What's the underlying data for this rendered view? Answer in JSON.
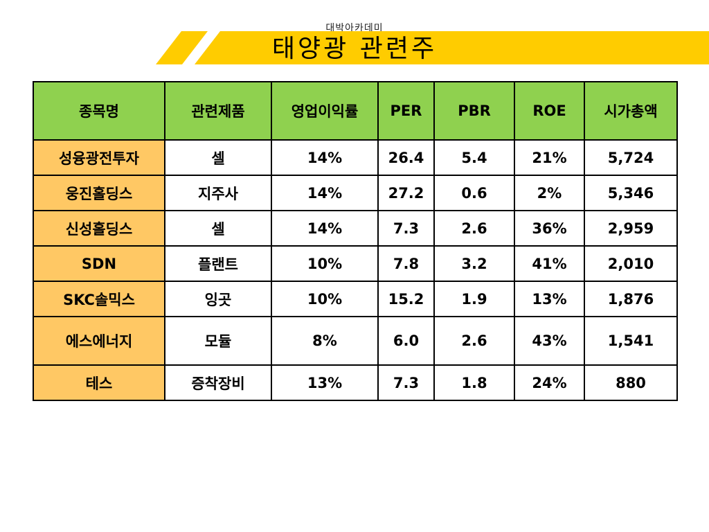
{
  "header": {
    "organization": "대박아카데미",
    "title": "태양광 관련주",
    "colors": {
      "banner": "#ffcc00",
      "header_row": "#8fd14f",
      "name_column": "#ffc864"
    }
  },
  "table": {
    "columns": [
      "종목명",
      "관련제품",
      "영업이익률",
      "PER",
      "PBR",
      "ROE",
      "시가총액"
    ],
    "rows": [
      [
        "성융광전투자",
        "셀",
        "14%",
        "26.4",
        "5.4",
        "21%",
        "5,724"
      ],
      [
        "웅진홀딩스",
        "지주사",
        "14%",
        "27.2",
        "0.6",
        "2%",
        "5,346"
      ],
      [
        "신성홀딩스",
        "셀",
        "14%",
        "7.3",
        "2.6",
        "36%",
        "2,959"
      ],
      [
        "SDN",
        "플랜트",
        "10%",
        "7.8",
        "3.2",
        "41%",
        "2,010"
      ],
      [
        "SKC솔믹스",
        "잉곳",
        "10%",
        "15.2",
        "1.9",
        "13%",
        "1,876"
      ],
      [
        "에스에너지",
        "모듈",
        "8%",
        "6.0",
        "2.6",
        "43%",
        "1,541"
      ],
      [
        "테스",
        "증착장비",
        "13%",
        "7.3",
        "1.8",
        "24%",
        "880"
      ]
    ]
  }
}
